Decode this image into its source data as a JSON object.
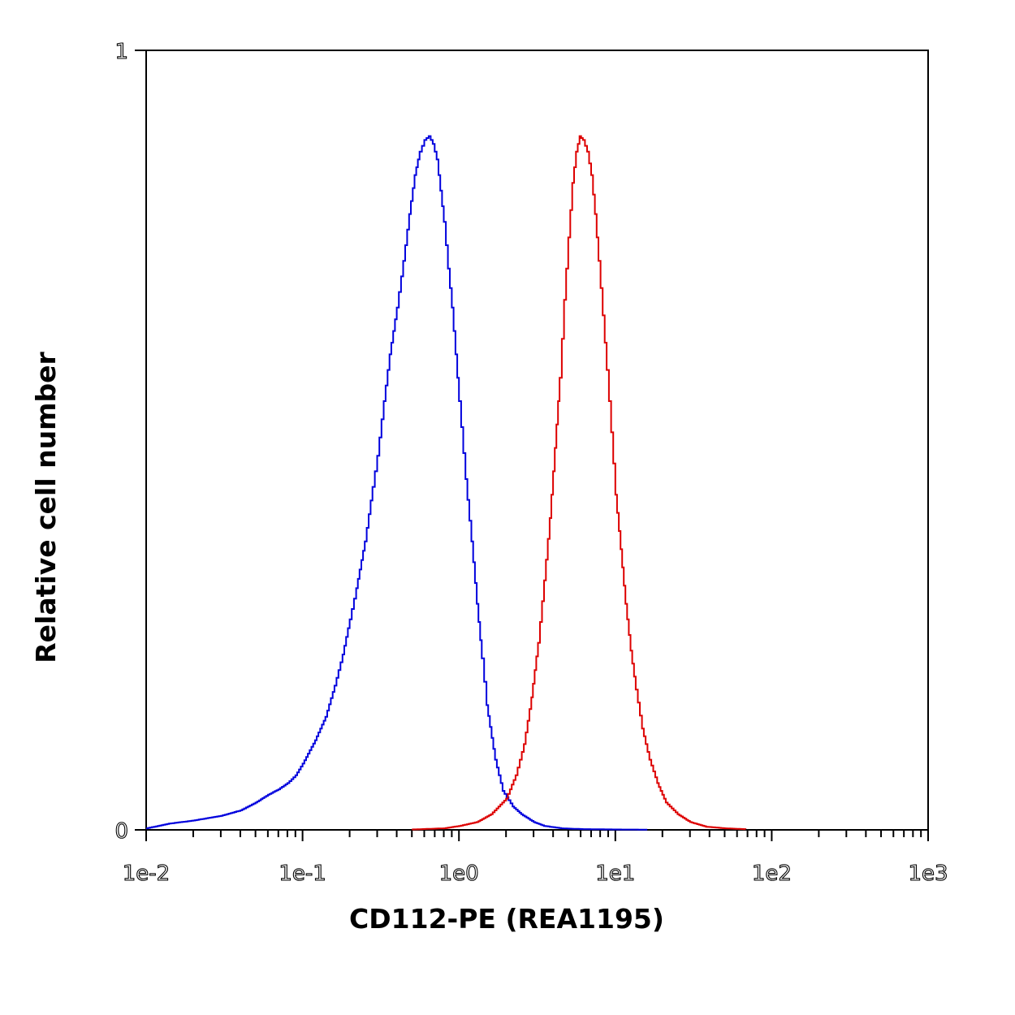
{
  "chart_data": {
    "type": "line",
    "xlabel": "CD112-PE (REA1195)",
    "ylabel": "Relative cell number",
    "x_scale": "log",
    "xlim": [
      0.01,
      1000
    ],
    "ylim": [
      0,
      1
    ],
    "x_tick_labels": [
      "1e-2",
      "1e-1",
      "1e0",
      "1e1",
      "1e2",
      "1e3"
    ],
    "x_tick_values": [
      0.01,
      0.1,
      1,
      10,
      100,
      1000
    ],
    "y_tick_labels": [
      "0",
      "1"
    ],
    "y_tick_values": [
      0,
      1
    ],
    "grid": false,
    "legend": "none",
    "series": [
      {
        "color": "#0000dd",
        "points": [
          [
            0.01,
            0.002
          ],
          [
            0.014,
            0.008
          ],
          [
            0.02,
            0.012
          ],
          [
            0.03,
            0.018
          ],
          [
            0.04,
            0.025
          ],
          [
            0.05,
            0.035
          ],
          [
            0.06,
            0.045
          ],
          [
            0.07,
            0.052
          ],
          [
            0.08,
            0.06
          ],
          [
            0.09,
            0.07
          ],
          [
            0.1,
            0.085
          ],
          [
            0.12,
            0.115
          ],
          [
            0.14,
            0.145
          ],
          [
            0.16,
            0.185
          ],
          [
            0.18,
            0.225
          ],
          [
            0.2,
            0.27
          ],
          [
            0.22,
            0.31
          ],
          [
            0.25,
            0.37
          ],
          [
            0.28,
            0.44
          ],
          [
            0.3,
            0.48
          ],
          [
            0.33,
            0.55
          ],
          [
            0.36,
            0.61
          ],
          [
            0.4,
            0.67
          ],
          [
            0.44,
            0.73
          ],
          [
            0.48,
            0.79
          ],
          [
            0.52,
            0.84
          ],
          [
            0.56,
            0.87
          ],
          [
            0.6,
            0.885
          ],
          [
            0.64,
            0.89
          ],
          [
            0.68,
            0.88
          ],
          [
            0.72,
            0.86
          ],
          [
            0.76,
            0.82
          ],
          [
            0.8,
            0.78
          ],
          [
            0.85,
            0.72
          ],
          [
            0.9,
            0.67
          ],
          [
            0.95,
            0.61
          ],
          [
            1.0,
            0.55
          ],
          [
            1.1,
            0.45
          ],
          [
            1.2,
            0.37
          ],
          [
            1.3,
            0.29
          ],
          [
            1.4,
            0.22
          ],
          [
            1.5,
            0.16
          ],
          [
            1.7,
            0.09
          ],
          [
            1.9,
            0.05
          ],
          [
            2.2,
            0.03
          ],
          [
            2.5,
            0.02
          ],
          [
            3.0,
            0.01
          ],
          [
            3.5,
            0.005
          ],
          [
            4.5,
            0.002
          ],
          [
            6.0,
            0.001
          ],
          [
            10.0,
            0.0005
          ],
          [
            16.0,
            0.0003
          ]
        ]
      },
      {
        "color": "#dd0000",
        "points": [
          [
            0.5,
            0.0005
          ],
          [
            0.8,
            0.002
          ],
          [
            1.0,
            0.005
          ],
          [
            1.3,
            0.01
          ],
          [
            1.6,
            0.02
          ],
          [
            2.0,
            0.04
          ],
          [
            2.3,
            0.07
          ],
          [
            2.6,
            0.11
          ],
          [
            2.9,
            0.17
          ],
          [
            3.2,
            0.24
          ],
          [
            3.5,
            0.32
          ],
          [
            3.8,
            0.4
          ],
          [
            4.1,
            0.49
          ],
          [
            4.4,
            0.58
          ],
          [
            4.7,
            0.68
          ],
          [
            5.0,
            0.76
          ],
          [
            5.3,
            0.83
          ],
          [
            5.6,
            0.87
          ],
          [
            5.9,
            0.89
          ],
          [
            6.2,
            0.885
          ],
          [
            6.6,
            0.87
          ],
          [
            7.0,
            0.84
          ],
          [
            7.4,
            0.79
          ],
          [
            7.8,
            0.73
          ],
          [
            8.3,
            0.66
          ],
          [
            8.8,
            0.59
          ],
          [
            9.4,
            0.51
          ],
          [
            10.0,
            0.43
          ],
          [
            10.8,
            0.36
          ],
          [
            11.6,
            0.29
          ],
          [
            12.5,
            0.23
          ],
          [
            13.5,
            0.18
          ],
          [
            14.8,
            0.13
          ],
          [
            16.5,
            0.09
          ],
          [
            18.5,
            0.06
          ],
          [
            21.0,
            0.035
          ],
          [
            25.0,
            0.02
          ],
          [
            30.0,
            0.01
          ],
          [
            38.0,
            0.004
          ],
          [
            50.0,
            0.002
          ],
          [
            68.0,
            0.0008
          ]
        ]
      }
    ]
  }
}
